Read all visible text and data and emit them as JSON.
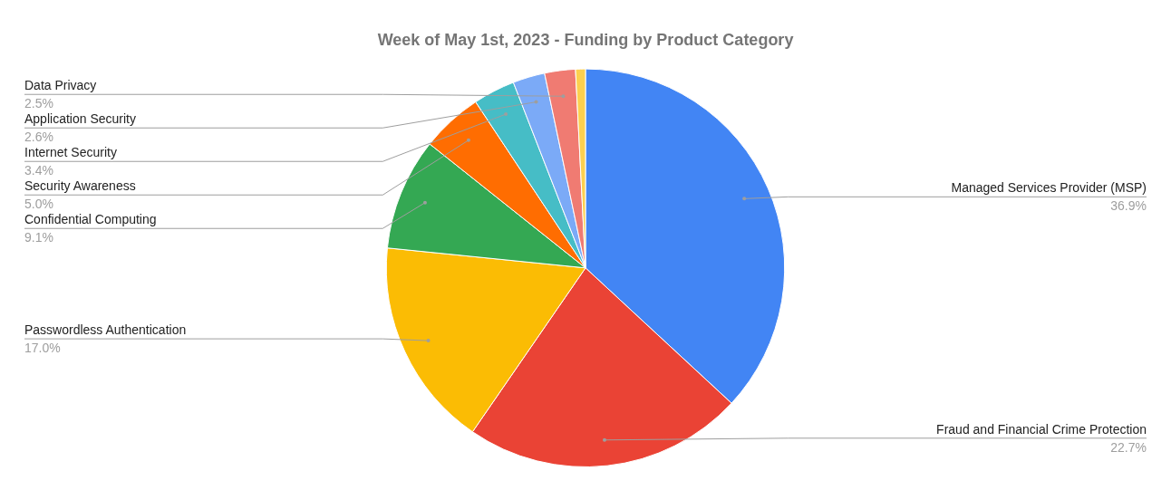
{
  "chart_data": {
    "type": "pie",
    "title": "Week of May 1st, 2023 - Funding by Product Category",
    "categories": [
      "Managed Services Provider (MSP)",
      "Fraud and Financial Crime Protection",
      "Passwordless Authentication",
      "Confidential Computing",
      "Security Awareness",
      "Internet Security",
      "Application Security",
      "Data Privacy",
      null
    ],
    "values": [
      36.9,
      22.7,
      17.0,
      9.1,
      5.0,
      3.4,
      2.6,
      2.5,
      0.8
    ],
    "value_labels": [
      "36.9%",
      "22.7%",
      "17.0%",
      "9.1%",
      "5.0%",
      "3.4%",
      "2.6%",
      "2.5%",
      null
    ],
    "colors": [
      "#4285f4",
      "#ea4335",
      "#fbbc04",
      "#34a853",
      "#ff6d01",
      "#46bdc6",
      "#7baaf7",
      "#f07b72",
      "#fcd04f"
    ],
    "legend": false
  }
}
